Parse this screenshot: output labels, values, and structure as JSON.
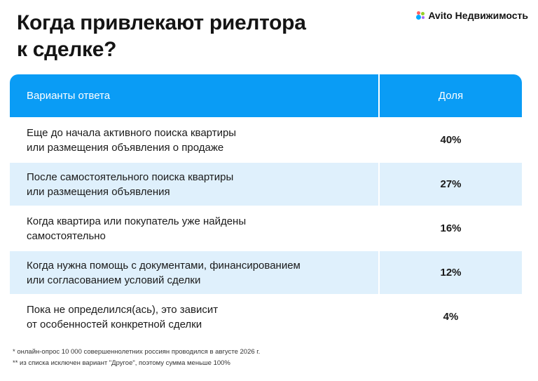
{
  "title_line1": "Когда привлекают риелтора",
  "title_line2": "к сделке?",
  "brand": {
    "name": "Avito Недвижимость"
  },
  "table": {
    "headers": [
      "Варианты ответа",
      "Доля"
    ],
    "rows": [
      {
        "answer_line1": "Еще до начала активного поиска квартиры",
        "answer_line2": "или размещения объявления о продаже",
        "share": "40%"
      },
      {
        "answer_line1": "После самостоятельного поиска квартиры",
        "answer_line2": "или размещения объявления",
        "share": "27%"
      },
      {
        "answer_line1": "Когда квартира или покупатель уже найдены",
        "answer_line2": "самостоятельно",
        "share": "16%"
      },
      {
        "answer_line1": "Когда нужна помощь с документами, финансированием",
        "answer_line2": "или согласованием условий сделки",
        "share": "12%"
      },
      {
        "answer_line1": "Пока не определился(ась), это зависит",
        "answer_line2": "от особенностей конкретной сделки",
        "share": "4%"
      }
    ]
  },
  "footnotes": [
    "* онлайн-опрос 10 000 совершеннолетних россиян проводился в августе 2026 г.",
    "** из списка исключен вариант \"Другое\", поэтому сумма меньше 100%"
  ],
  "colors": {
    "header_bg": "#0a9cf5",
    "row_shade": "#dff0fc"
  }
}
